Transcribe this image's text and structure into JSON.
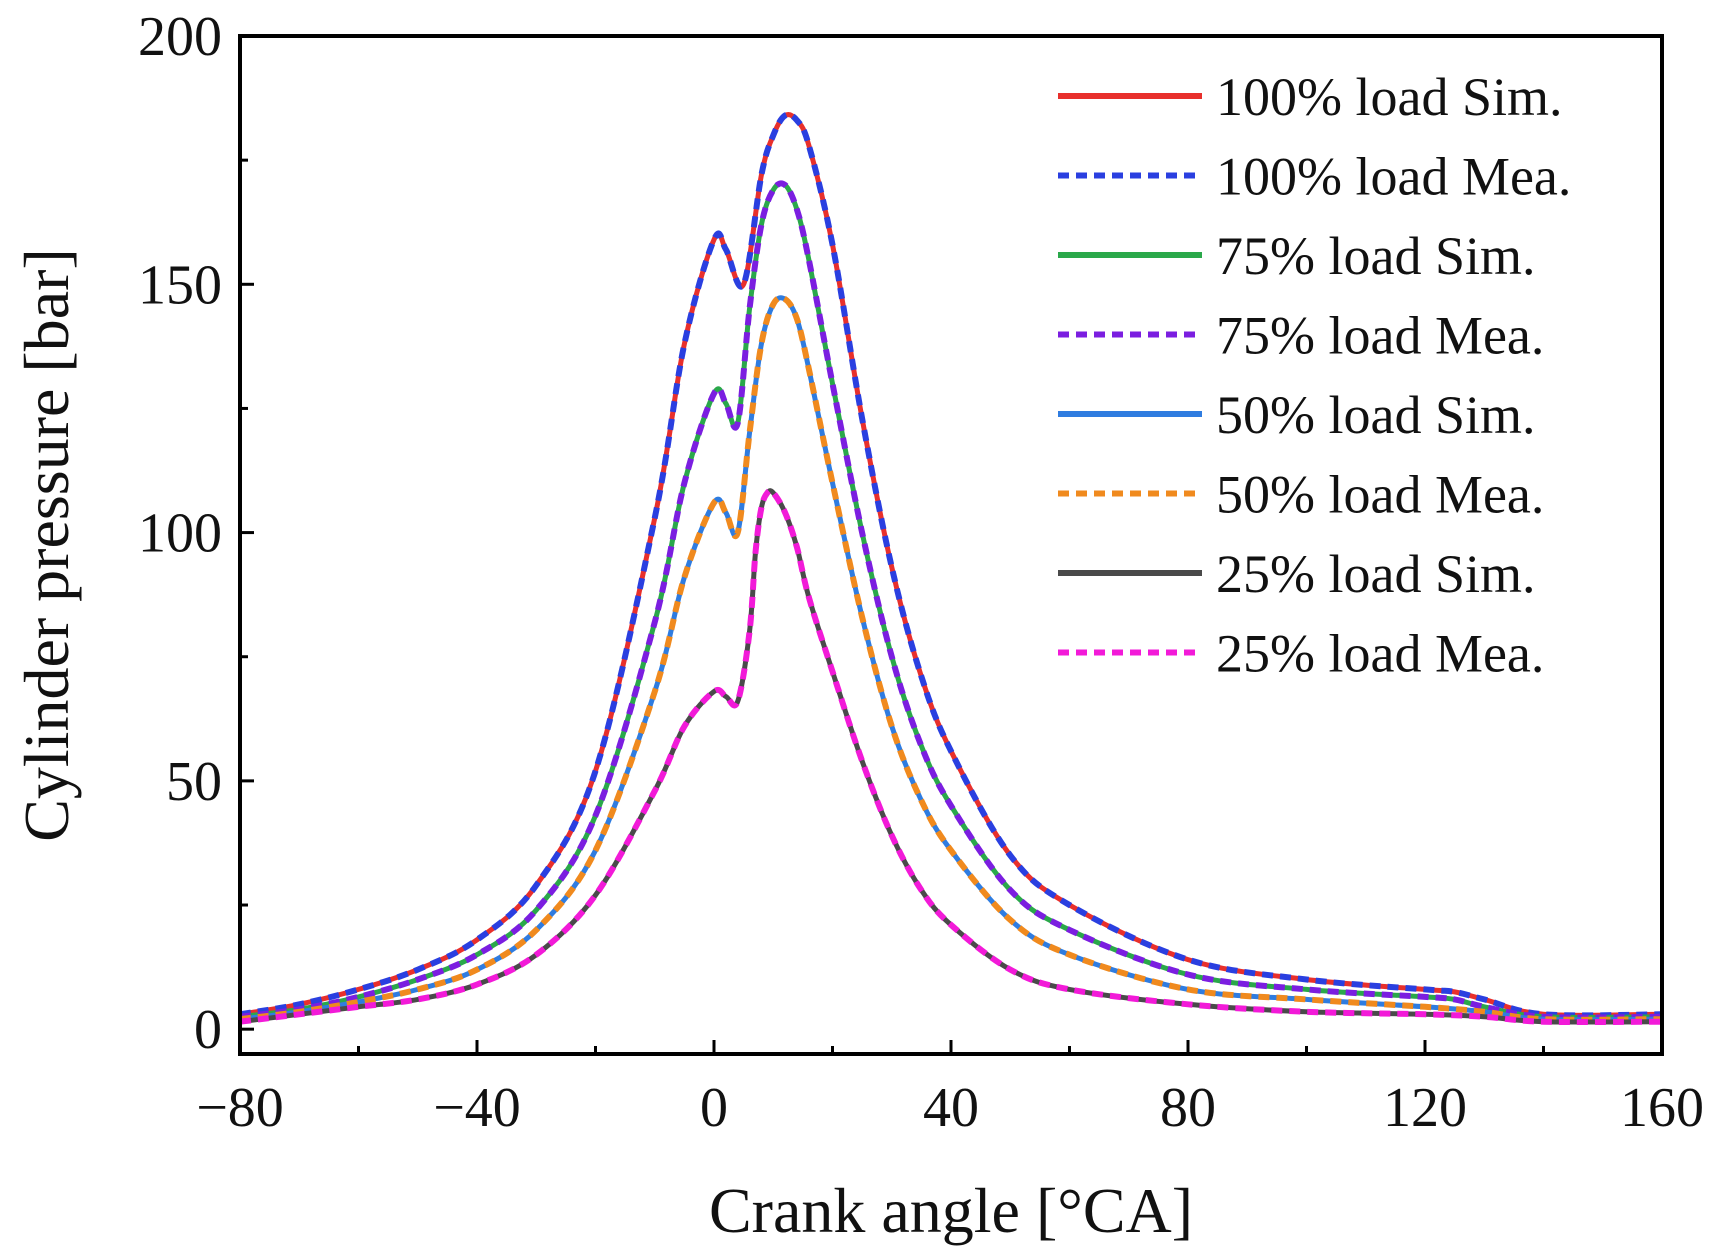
{
  "chart_data": {
    "type": "line",
    "title": "",
    "xlabel": "Crank angle [°CA]",
    "ylabel": "Cylinder pressure [bar]",
    "xlim": [
      -80,
      160
    ],
    "ylim": [
      -5,
      200
    ],
    "x_ticks": [
      -80,
      -40,
      0,
      40,
      80,
      120,
      160
    ],
    "x_tick_labels": [
      "−80",
      "−40",
      "0",
      "40",
      "80",
      "120",
      "160"
    ],
    "y_ticks": [
      0,
      50,
      100,
      150,
      200
    ],
    "y_tick_labels": [
      "0",
      "50",
      "100",
      "150",
      "200"
    ],
    "grid": false,
    "legend_position": "top-right",
    "series": [
      {
        "name": "100% load Sim.",
        "color": "#e8302c",
        "dash": "solid",
        "x": [
          -80,
          -70,
          -60,
          -50,
          -40,
          -30,
          -20,
          -10,
          -5,
          0,
          2,
          5,
          8,
          10,
          12,
          14,
          16,
          20,
          25,
          30,
          35,
          40,
          50,
          60,
          80,
          100,
          120,
          125,
          130,
          140,
          160
        ],
        "y": [
          3,
          5,
          8,
          12,
          18,
          29,
          52,
          103,
          138,
          159,
          157,
          150,
          172,
          180,
          184,
          183,
          178,
          158,
          123,
          93,
          71,
          56,
          35,
          25,
          14,
          10,
          8,
          7.5,
          6,
          3,
          3
        ]
      },
      {
        "name": "100% load Mea.",
        "color": "#2a3fe0",
        "dash": "dashed",
        "x": [
          -80,
          -70,
          -60,
          -50,
          -40,
          -30,
          -20,
          -10,
          -5,
          0,
          2,
          5,
          8,
          10,
          12,
          14,
          16,
          20,
          25,
          30,
          35,
          40,
          50,
          60,
          80,
          100,
          120,
          125,
          130,
          140,
          160
        ],
        "y": [
          3,
          5,
          8,
          12,
          18,
          29,
          52,
          103,
          138,
          159,
          157,
          150,
          172,
          180,
          184,
          183,
          178,
          158,
          123,
          93,
          71,
          56,
          35,
          25,
          14,
          10,
          8,
          7.5,
          6,
          3,
          3
        ]
      },
      {
        "name": "75% load Sim.",
        "color": "#2aa84a",
        "dash": "solid",
        "x": [
          -80,
          -70,
          -60,
          -50,
          -40,
          -30,
          -20,
          -10,
          -5,
          0,
          2,
          4,
          6,
          8,
          10,
          12,
          14,
          16,
          20,
          25,
          30,
          35,
          40,
          50,
          60,
          80,
          100,
          120,
          125,
          130,
          140,
          160
        ],
        "y": [
          2.5,
          4,
          6.5,
          10,
          15,
          24,
          43,
          82,
          110,
          128,
          126,
          122,
          145,
          162,
          169,
          170,
          165,
          155,
          130,
          100,
          75,
          57,
          45,
          28,
          20,
          11,
          8,
          6.5,
          6,
          4.5,
          2.5,
          2.5
        ]
      },
      {
        "name": "75% load Mea.",
        "color": "#7b1ee0",
        "dash": "dashed",
        "x": [
          -80,
          -70,
          -60,
          -50,
          -40,
          -30,
          -20,
          -10,
          -5,
          0,
          2,
          4,
          6,
          8,
          10,
          12,
          14,
          16,
          20,
          25,
          30,
          35,
          40,
          50,
          60,
          80,
          100,
          120,
          125,
          130,
          140,
          160
        ],
        "y": [
          2.5,
          4,
          6.5,
          10,
          15,
          24,
          43,
          82,
          110,
          128,
          126,
          122,
          145,
          162,
          169,
          170,
          165,
          155,
          130,
          100,
          75,
          57,
          45,
          28,
          20,
          11,
          8,
          6.5,
          6,
          4.5,
          2.5,
          2.5
        ]
      },
      {
        "name": "50% load Sim.",
        "color": "#2f7ce0",
        "dash": "solid",
        "x": [
          -80,
          -70,
          -60,
          -50,
          -40,
          -30,
          -20,
          -10,
          -5,
          0,
          2,
          4,
          6,
          8,
          10,
          12,
          14,
          16,
          20,
          25,
          30,
          35,
          40,
          50,
          60,
          80,
          100,
          120,
          130,
          140,
          160
        ],
        "y": [
          2,
          3.5,
          5.5,
          8,
          12,
          20,
          36,
          68,
          91,
          106,
          104,
          100,
          120,
          138,
          146,
          147,
          143,
          133,
          110,
          83,
          61,
          46,
          36,
          22,
          15,
          8,
          6,
          4.5,
          3.5,
          2,
          2
        ]
      },
      {
        "name": "50% load Mea.",
        "color": "#f08a1e",
        "dash": "dashed",
        "x": [
          -80,
          -70,
          -60,
          -50,
          -40,
          -30,
          -20,
          -10,
          -5,
          0,
          2,
          4,
          6,
          8,
          10,
          12,
          14,
          16,
          20,
          25,
          30,
          35,
          40,
          50,
          60,
          80,
          100,
          120,
          130,
          140,
          160
        ],
        "y": [
          2,
          3.5,
          5.5,
          8,
          12,
          20,
          36,
          68,
          91,
          106,
          104,
          100,
          120,
          138,
          146,
          147,
          143,
          133,
          110,
          83,
          61,
          46,
          36,
          22,
          15,
          8,
          6,
          4.5,
          3.5,
          2,
          2
        ]
      },
      {
        "name": "25% load Sim.",
        "color": "#4a4a4a",
        "dash": "solid",
        "x": [
          -80,
          -70,
          -60,
          -50,
          -40,
          -30,
          -20,
          -10,
          -5,
          0,
          2,
          4,
          6,
          7,
          8,
          9,
          10,
          12,
          14,
          16,
          20,
          25,
          30,
          35,
          40,
          50,
          60,
          80,
          100,
          120,
          130,
          140,
          160
        ],
        "y": [
          1.5,
          3,
          4.5,
          6,
          9,
          15,
          27,
          48,
          61,
          68,
          67,
          66,
          80,
          96,
          105,
          108,
          108,
          104,
          97,
          87,
          72,
          54,
          39,
          28,
          21,
          12,
          8,
          5,
          3.5,
          3,
          2.5,
          1.5,
          1.5
        ]
      },
      {
        "name": "25% load Mea.",
        "color": "#f21ad8",
        "dash": "dashed",
        "x": [
          -80,
          -70,
          -60,
          -50,
          -40,
          -30,
          -20,
          -10,
          -5,
          0,
          2,
          4,
          6,
          7,
          8,
          9,
          10,
          12,
          14,
          16,
          20,
          25,
          30,
          35,
          40,
          50,
          60,
          80,
          100,
          120,
          130,
          140,
          160
        ],
        "y": [
          1.5,
          3,
          4.5,
          6,
          9,
          15,
          27,
          48,
          61,
          68,
          67,
          66,
          80,
          96,
          105,
          108,
          108,
          104,
          97,
          87,
          72,
          54,
          39,
          28,
          21,
          12,
          8,
          5,
          3.5,
          3,
          2.5,
          1.5,
          1.5
        ]
      }
    ]
  }
}
